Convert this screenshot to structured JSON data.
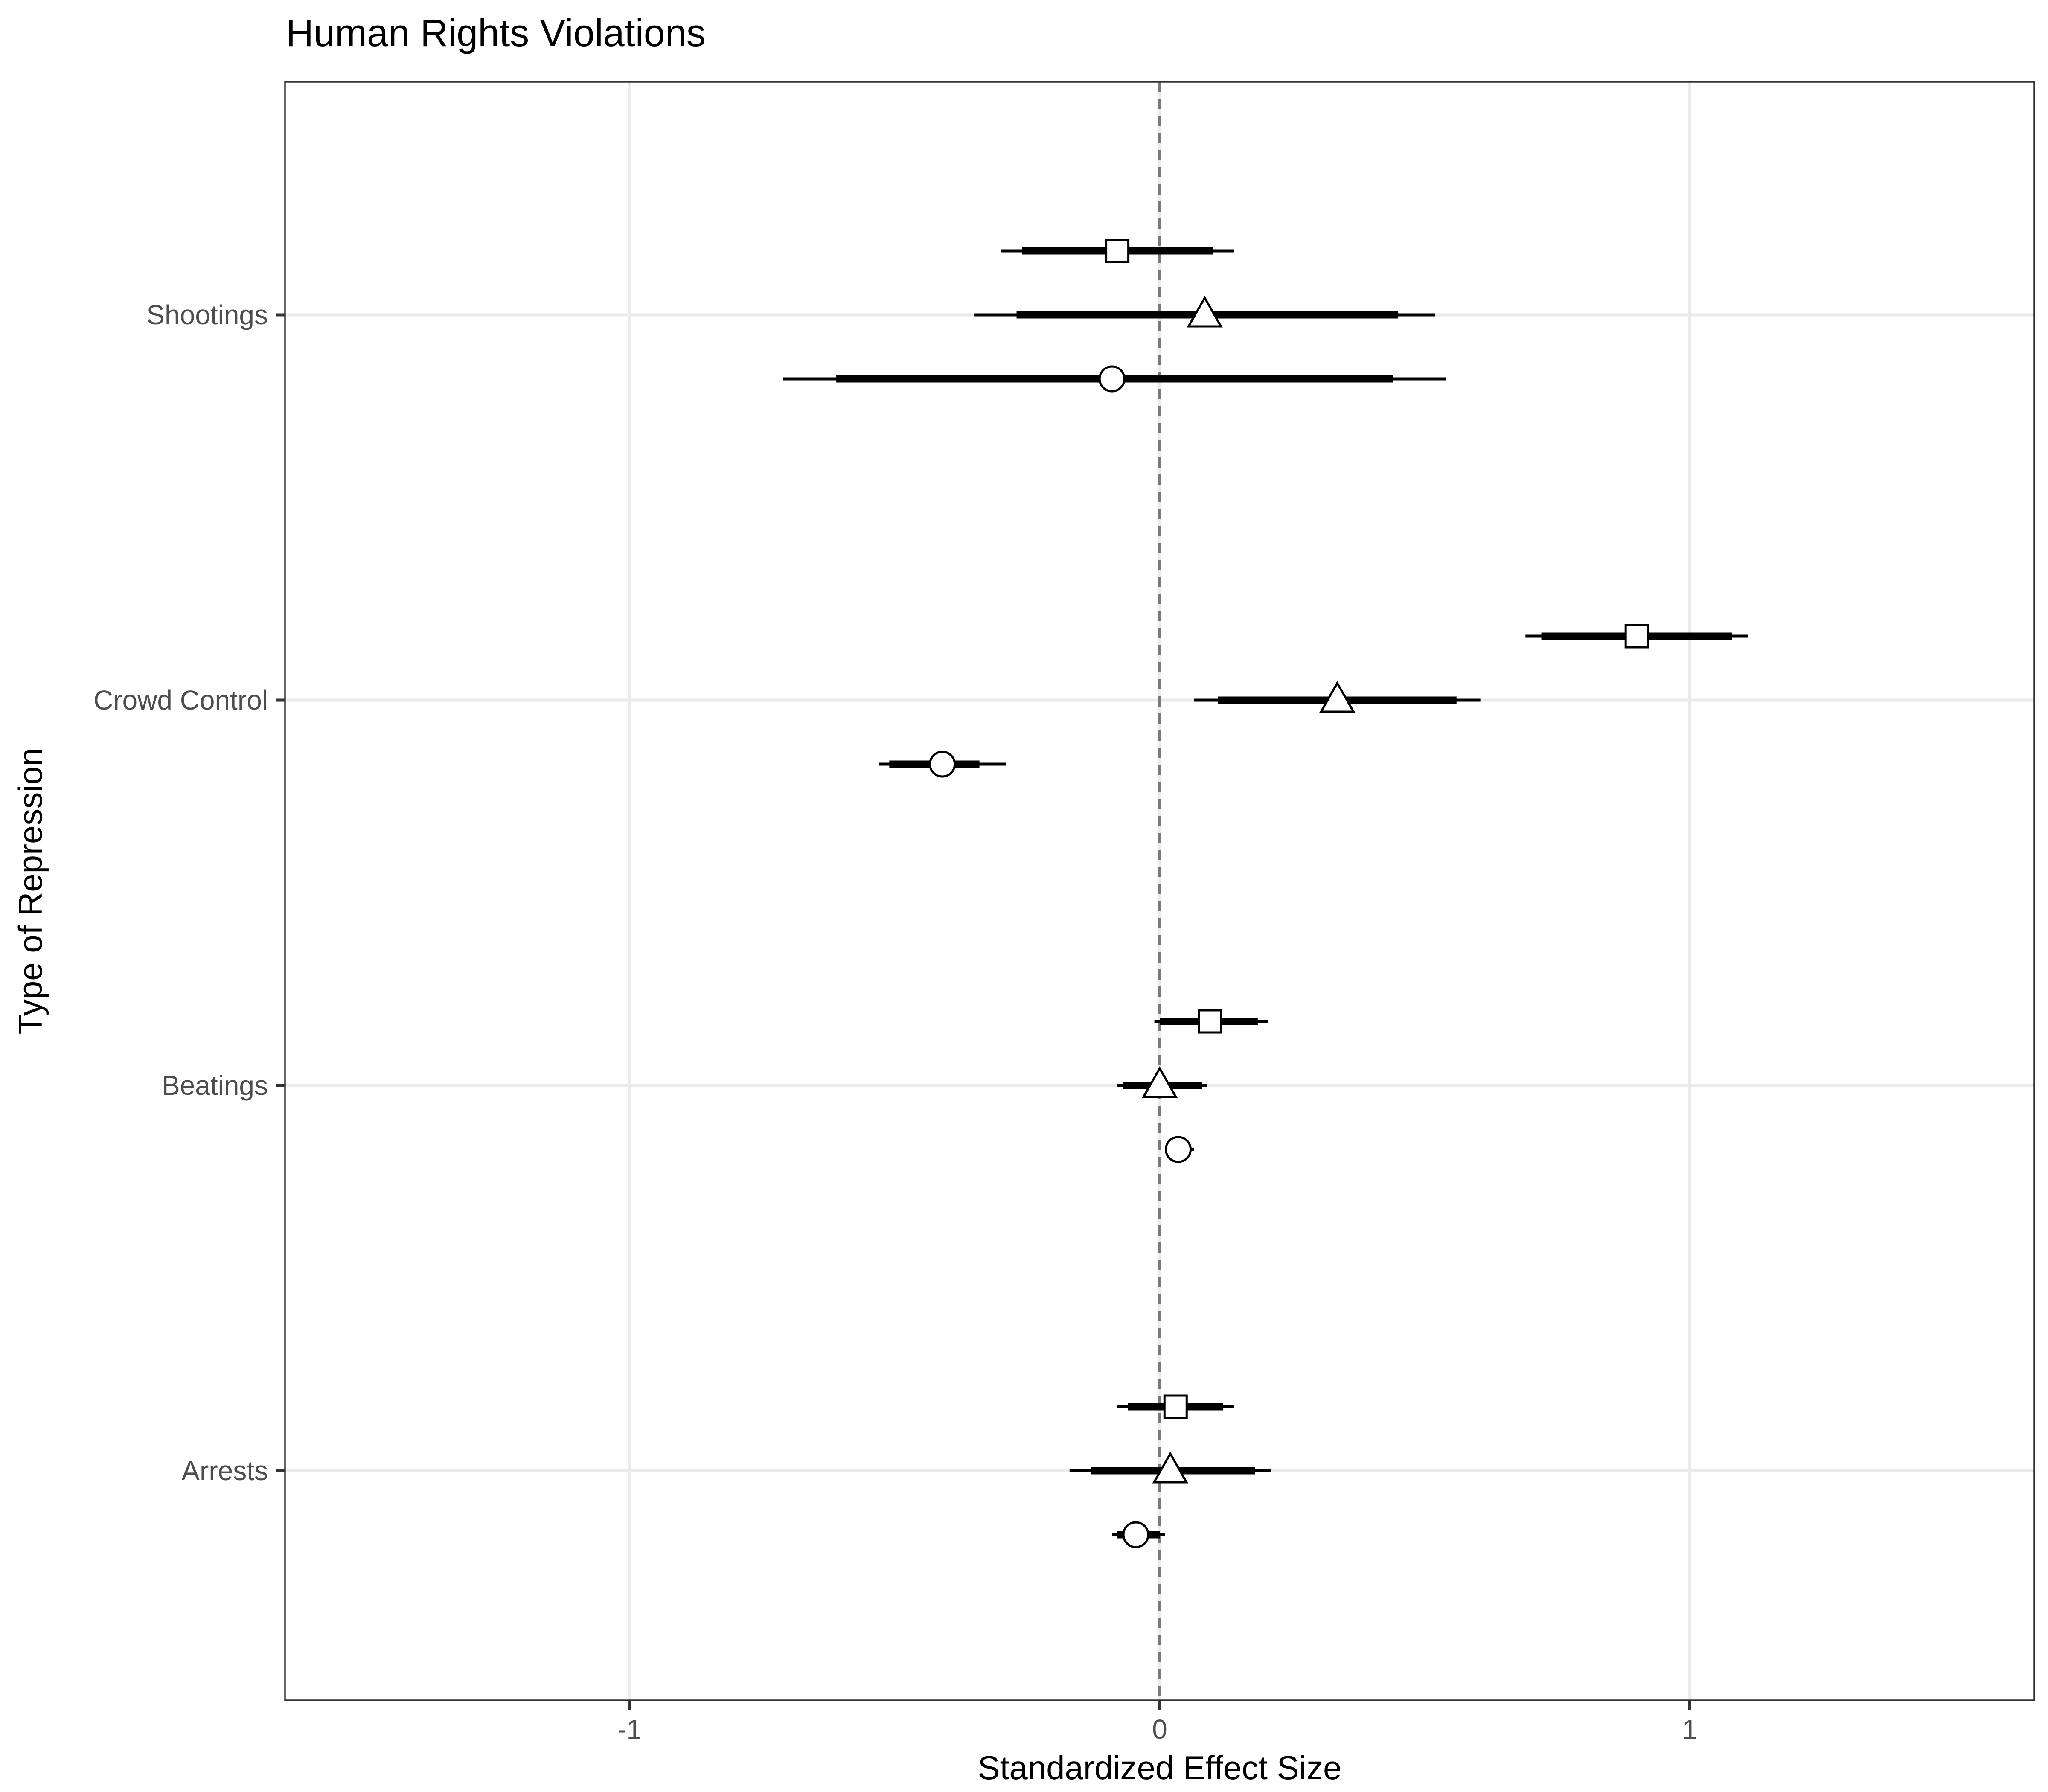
{
  "chart_data": {
    "type": "scatter",
    "subtype": "coefficient-plot",
    "title": "Human Rights Violations",
    "xlabel": "Standardized Effect Size",
    "ylabel": "Type of Repression",
    "xlim": [
      -1.65,
      1.65
    ],
    "x_ticks": [
      -1,
      0,
      1
    ],
    "x_tick_labels": [
      "-1",
      "0",
      "1"
    ],
    "reference_line": 0,
    "grid": true,
    "legend": "none",
    "categories": [
      "Arrests",
      "Beatings",
      "Crowd Control",
      "Shootings"
    ],
    "series": [
      {
        "marker": "square",
        "points": [
          {
            "category": "Arrests",
            "estimate": 0.03,
            "inner_ci": [
              -0.06,
              0.12
            ],
            "outer_ci": [
              -0.08,
              0.14
            ]
          },
          {
            "category": "Beatings",
            "estimate": 0.095,
            "inner_ci": [
              0.0,
              0.185
            ],
            "outer_ci": [
              -0.01,
              0.205
            ]
          },
          {
            "category": "Crowd Control",
            "estimate": 0.9,
            "inner_ci": [
              0.72,
              1.08
            ],
            "outer_ci": [
              0.69,
              1.11
            ]
          },
          {
            "category": "Shootings",
            "estimate": -0.08,
            "inner_ci": [
              -0.26,
              0.1
            ],
            "outer_ci": [
              -0.3,
              0.14
            ]
          }
        ]
      },
      {
        "marker": "triangle",
        "points": [
          {
            "category": "Arrests",
            "estimate": 0.02,
            "inner_ci": [
              -0.13,
              0.18
            ],
            "outer_ci": [
              -0.17,
              0.21
            ]
          },
          {
            "category": "Beatings",
            "estimate": 0.0,
            "inner_ci": [
              -0.07,
              0.08
            ],
            "outer_ci": [
              -0.08,
              0.09
            ]
          },
          {
            "category": "Crowd Control",
            "estimate": 0.335,
            "inner_ci": [
              0.11,
              0.56
            ],
            "outer_ci": [
              0.065,
              0.605
            ]
          },
          {
            "category": "Shootings",
            "estimate": 0.085,
            "inner_ci": [
              -0.27,
              0.45
            ],
            "outer_ci": [
              -0.35,
              0.52
            ]
          }
        ]
      },
      {
        "marker": "circle",
        "points": [
          {
            "category": "Arrests",
            "estimate": -0.045,
            "inner_ci": [
              -0.08,
              0.0
            ],
            "outer_ci": [
              -0.09,
              0.01
            ]
          },
          {
            "category": "Beatings",
            "estimate": 0.035,
            "inner_ci": [
              0.02,
              0.05
            ],
            "outer_ci": [
              0.01,
              0.065
            ]
          },
          {
            "category": "Crowd Control",
            "estimate": -0.41,
            "inner_ci": [
              -0.51,
              -0.34
            ],
            "outer_ci": [
              -0.53,
              -0.29
            ]
          },
          {
            "category": "Shootings",
            "estimate": -0.09,
            "inner_ci": [
              -0.61,
              0.44
            ],
            "outer_ci": [
              -0.71,
              0.54
            ]
          }
        ]
      }
    ]
  }
}
